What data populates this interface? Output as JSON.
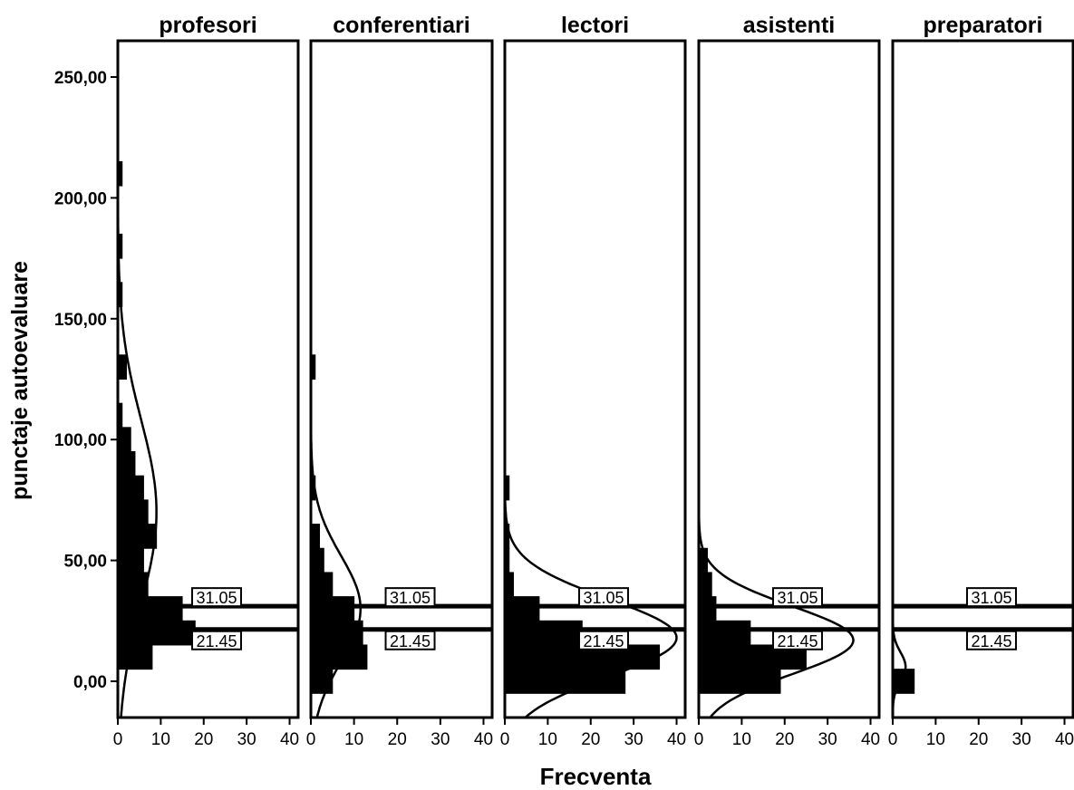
{
  "chart_data": {
    "type": "bar",
    "orientation": "horizontal",
    "title": "",
    "xlabel": "Frecventa",
    "ylabel": "punctaje autoevaluare",
    "ylim": [
      -15,
      265
    ],
    "xlim": [
      0,
      42
    ],
    "y_ticks": [
      {
        "value": 0,
        "label": "0,00"
      },
      {
        "value": 50,
        "label": "50,00"
      },
      {
        "value": 100,
        "label": "100,00"
      },
      {
        "value": 150,
        "label": "150,00"
      },
      {
        "value": 200,
        "label": "200,00"
      },
      {
        "value": 250,
        "label": "250,00"
      }
    ],
    "x_ticks": [
      {
        "value": 0,
        "label": "0"
      },
      {
        "value": 10,
        "label": "10"
      },
      {
        "value": 20,
        "label": "20"
      },
      {
        "value": 30,
        "label": "30"
      },
      {
        "value": 40,
        "label": "40"
      }
    ],
    "bin_width": 10,
    "reference_lines": [
      {
        "value": 31.05,
        "label": "31.05"
      },
      {
        "value": 21.45,
        "label": "21.45"
      }
    ],
    "panels": [
      {
        "name": "profesori",
        "bins": [
          {
            "y": 10,
            "count": 8
          },
          {
            "y": 20,
            "count": 18
          },
          {
            "y": 30,
            "count": 15
          },
          {
            "y": 40,
            "count": 7
          },
          {
            "y": 50,
            "count": 6
          },
          {
            "y": 60,
            "count": 9
          },
          {
            "y": 70,
            "count": 7
          },
          {
            "y": 80,
            "count": 6
          },
          {
            "y": 90,
            "count": 4
          },
          {
            "y": 100,
            "count": 3
          },
          {
            "y": 110,
            "count": 1
          },
          {
            "y": 130,
            "count": 2
          },
          {
            "y": 160,
            "count": 1
          },
          {
            "y": 180,
            "count": 1
          },
          {
            "y": 210,
            "count": 1
          }
        ],
        "normal": {
          "mean": 70,
          "sd": 38,
          "peak": 9
        }
      },
      {
        "name": "conferentiari",
        "bins": [
          {
            "y": 0,
            "count": 5
          },
          {
            "y": 10,
            "count": 13
          },
          {
            "y": 20,
            "count": 12
          },
          {
            "y": 30,
            "count": 10
          },
          {
            "y": 40,
            "count": 5
          },
          {
            "y": 50,
            "count": 3
          },
          {
            "y": 60,
            "count": 2
          },
          {
            "y": 80,
            "count": 1
          },
          {
            "y": 130,
            "count": 1
          }
        ],
        "normal": {
          "mean": 30,
          "sd": 22,
          "peak": 11.5
        }
      },
      {
        "name": "lectori",
        "bins": [
          {
            "y": 0,
            "count": 28
          },
          {
            "y": 10,
            "count": 36
          },
          {
            "y": 20,
            "count": 18
          },
          {
            "y": 30,
            "count": 8
          },
          {
            "y": 40,
            "count": 2
          },
          {
            "y": 50,
            "count": 1
          },
          {
            "y": 60,
            "count": 1
          },
          {
            "y": 80,
            "count": 1
          }
        ],
        "normal": {
          "mean": 18,
          "sd": 16,
          "peak": 40
        }
      },
      {
        "name": "asistenti",
        "bins": [
          {
            "y": 0,
            "count": 19
          },
          {
            "y": 10,
            "count": 25
          },
          {
            "y": 20,
            "count": 12
          },
          {
            "y": 30,
            "count": 4
          },
          {
            "y": 40,
            "count": 3
          },
          {
            "y": 50,
            "count": 2
          }
        ],
        "normal": {
          "mean": 17,
          "sd": 14,
          "peak": 36
        }
      },
      {
        "name": "preparatori",
        "bins": [
          {
            "y": 0,
            "count": 5
          }
        ],
        "normal": {
          "mean": 6,
          "sd": 6,
          "peak": 3
        }
      }
    ]
  }
}
